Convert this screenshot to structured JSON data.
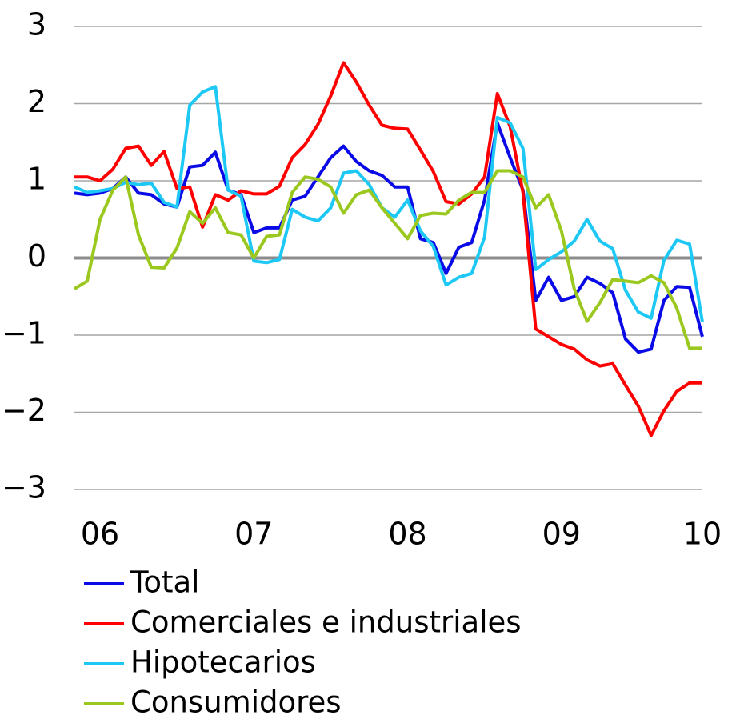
{
  "chart_data": {
    "type": "line",
    "categories": [
      null,
      null,
      "06",
      null,
      null,
      null,
      null,
      null,
      null,
      null,
      null,
      null,
      null,
      null,
      "07",
      null,
      null,
      null,
      null,
      null,
      null,
      null,
      null,
      null,
      null,
      null,
      "08",
      null,
      null,
      null,
      null,
      null,
      null,
      null,
      null,
      null,
      null,
      null,
      "09",
      null,
      null,
      null,
      null,
      null,
      null,
      null,
      null,
      null,
      null,
      "10"
    ],
    "series": [
      {
        "name": "Total",
        "color": "#0a0ae6",
        "values": [
          0.84,
          0.82,
          0.84,
          0.9,
          1.05,
          0.84,
          0.82,
          0.7,
          0.66,
          1.18,
          1.2,
          1.37,
          0.88,
          0.82,
          0.33,
          0.39,
          0.39,
          0.75,
          0.8,
          1.05,
          1.3,
          1.45,
          1.25,
          1.13,
          1.07,
          0.92,
          0.92,
          0.25,
          0.2,
          -0.2,
          0.14,
          0.2,
          0.75,
          1.75,
          1.3,
          0.88,
          -0.55,
          -0.25,
          -0.55,
          -0.5,
          -0.25,
          -0.33,
          -0.45,
          -1.05,
          -1.22,
          -1.18,
          -0.55,
          -0.37,
          -0.38,
          -1.02
        ]
      },
      {
        "name": "Comerciales e industriales",
        "color": "#ff0000",
        "values": [
          1.05,
          1.05,
          1.0,
          1.15,
          1.42,
          1.45,
          1.2,
          1.38,
          0.9,
          0.92,
          0.4,
          0.82,
          0.75,
          0.87,
          0.83,
          0.83,
          0.93,
          1.3,
          1.47,
          1.73,
          2.1,
          2.53,
          2.28,
          1.98,
          1.72,
          1.68,
          1.67,
          1.4,
          1.12,
          0.73,
          0.7,
          0.83,
          1.05,
          2.13,
          1.7,
          0.85,
          -0.92,
          -1.02,
          -1.12,
          -1.18,
          -1.32,
          -1.4,
          -1.37,
          -1.65,
          -1.92,
          -2.3,
          -1.98,
          -1.73,
          -1.62,
          -1.62
        ]
      },
      {
        "name": "Hipotecarios",
        "color": "#1ec8f5",
        "values": [
          0.92,
          0.85,
          0.87,
          0.9,
          0.98,
          0.95,
          0.97,
          0.72,
          0.66,
          1.98,
          2.15,
          2.22,
          0.88,
          0.8,
          -0.04,
          -0.06,
          -0.02,
          0.63,
          0.53,
          0.48,
          0.65,
          1.1,
          1.13,
          0.95,
          0.65,
          0.53,
          0.75,
          0.35,
          0.15,
          -0.35,
          -0.25,
          -0.2,
          0.27,
          1.82,
          1.75,
          1.42,
          -0.15,
          -0.02,
          0.08,
          0.22,
          0.5,
          0.22,
          0.12,
          -0.42,
          -0.7,
          -0.78,
          -0.03,
          0.23,
          0.18,
          -0.83
        ]
      },
      {
        "name": "Consumidores",
        "color": "#9bc81e",
        "values": [
          -0.4,
          -0.3,
          0.5,
          0.88,
          1.05,
          0.3,
          -0.12,
          -0.13,
          0.13,
          0.6,
          0.45,
          0.65,
          0.33,
          0.3,
          0.0,
          0.28,
          0.3,
          0.85,
          1.05,
          1.02,
          0.92,
          0.58,
          0.82,
          0.88,
          0.65,
          0.45,
          0.25,
          0.55,
          0.58,
          0.57,
          0.75,
          0.85,
          0.85,
          1.13,
          1.13,
          1.05,
          0.65,
          0.82,
          0.35,
          -0.4,
          -0.82,
          -0.58,
          -0.28,
          -0.3,
          -0.32,
          -0.23,
          -0.32,
          -0.65,
          -1.17,
          -1.17
        ]
      }
    ],
    "ylim": [
      -3,
      3
    ],
    "yticks": [
      {
        "value": -3,
        "label": "−3"
      },
      {
        "value": -2,
        "label": "−2"
      },
      {
        "value": -1,
        "label": "−1"
      },
      0,
      1,
      2,
      3
    ],
    "grid": true
  }
}
